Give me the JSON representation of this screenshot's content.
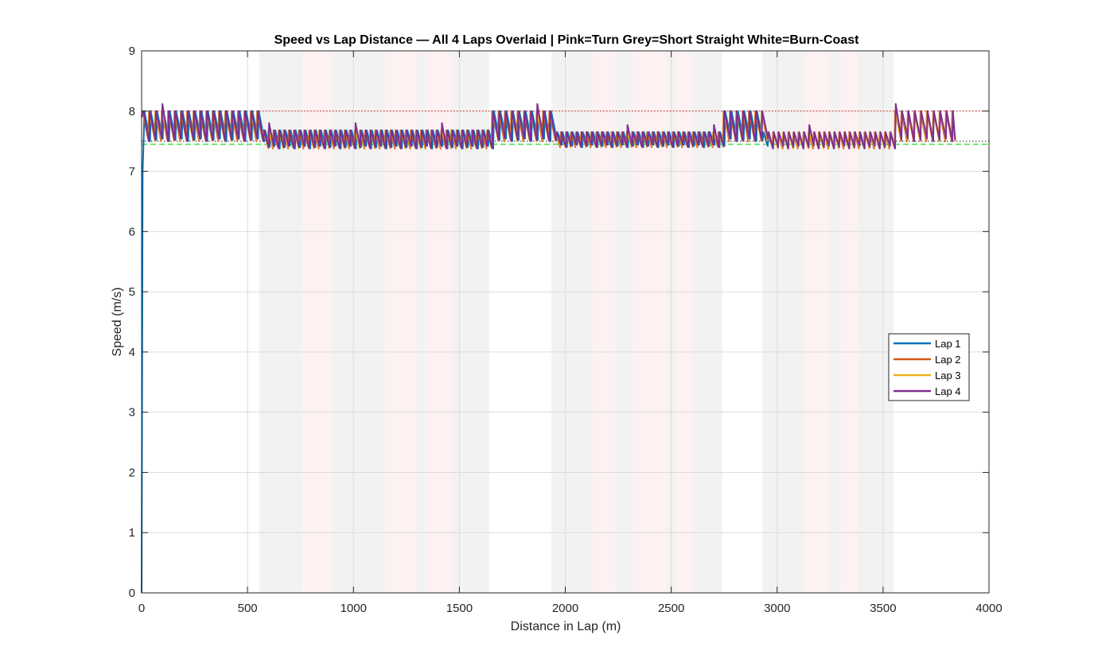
{
  "chart_data": {
    "type": "line",
    "title": "Speed vs Lap Distance — All 4 Laps Overlaid  |  Pink=Turn  Grey=Short Straight  White=Burn-Coast",
    "xlabel": "Distance in Lap (m)",
    "ylabel": "Speed (m/s)",
    "xlim": [
      0,
      4000
    ],
    "ylim": [
      0,
      9
    ],
    "xticks": [
      "0",
      "500",
      "1000",
      "1500",
      "2000",
      "2500",
      "3000",
      "3500",
      "4000"
    ],
    "yticks": [
      "0",
      "1",
      "2",
      "3",
      "4",
      "5",
      "6",
      "7",
      "8",
      "9"
    ],
    "grid": true,
    "legend_location": "right",
    "reference_lines": [
      {
        "y": 8.0,
        "color": "#e04040",
        "style": "dotted"
      },
      {
        "y": 7.5,
        "color": "#303030",
        "style": "dotted"
      },
      {
        "y": 7.45,
        "color": "#44dd44",
        "style": "dashed"
      }
    ],
    "segments": [
      {
        "type": "grey",
        "start": 555,
        "end": 755
      },
      {
        "type": "turn",
        "start": 755,
        "end": 900
      },
      {
        "type": "grey",
        "start": 900,
        "end": 1150
      },
      {
        "type": "turn",
        "start": 1150,
        "end": 1300
      },
      {
        "type": "grey",
        "start": 1300,
        "end": 1340
      },
      {
        "type": "turn",
        "start": 1340,
        "end": 1460
      },
      {
        "type": "grey",
        "start": 1460,
        "end": 1640
      },
      {
        "type": "grey",
        "start": 1935,
        "end": 2130
      },
      {
        "type": "turn",
        "start": 2130,
        "end": 2240
      },
      {
        "type": "grey",
        "start": 2240,
        "end": 2320
      },
      {
        "type": "turn",
        "start": 2320,
        "end": 2480
      },
      {
        "type": "grey",
        "start": 2480,
        "end": 2520
      },
      {
        "type": "turn",
        "start": 2520,
        "end": 2600
      },
      {
        "type": "grey",
        "start": 2600,
        "end": 2740
      },
      {
        "type": "grey",
        "start": 2930,
        "end": 3130
      },
      {
        "type": "turn",
        "start": 3130,
        "end": 3250
      },
      {
        "type": "grey",
        "start": 3250,
        "end": 3300
      },
      {
        "type": "turn",
        "start": 3300,
        "end": 3380
      },
      {
        "type": "grey",
        "start": 3380,
        "end": 3550
      }
    ],
    "segment_colors": {
      "grey": "#f2f2f2",
      "turn": "#fdf1f1"
    },
    "series": [
      {
        "name": "Lap 1",
        "color": "#0072bd",
        "phase": 0
      },
      {
        "name": "Lap 2",
        "color": "#d95319",
        "phase": 5
      },
      {
        "name": "Lap 3",
        "color": "#edb120",
        "phase": 10
      },
      {
        "name": "Lap 4",
        "color": "#7e2f8e",
        "phase": 15
      }
    ],
    "regimes": [
      {
        "start": 0,
        "end": 555,
        "low": 7.5,
        "high": 8.0
      },
      {
        "start": 555,
        "end": 1640,
        "low": 7.38,
        "high": 7.68
      },
      {
        "start": 1640,
        "end": 1935,
        "low": 7.5,
        "high": 8.0
      },
      {
        "start": 1935,
        "end": 2740,
        "low": 7.4,
        "high": 7.65
      },
      {
        "start": 2740,
        "end": 2930,
        "low": 7.5,
        "high": 8.0
      },
      {
        "start": 2930,
        "end": 3550,
        "low": 7.38,
        "high": 7.65
      },
      {
        "start": 3550,
        "end": 3840,
        "low": 7.5,
        "high": 8.0
      }
    ],
    "lap1_startup": [
      [
        0,
        0
      ],
      [
        5,
        7.0
      ],
      [
        10,
        7.6
      ]
    ]
  }
}
